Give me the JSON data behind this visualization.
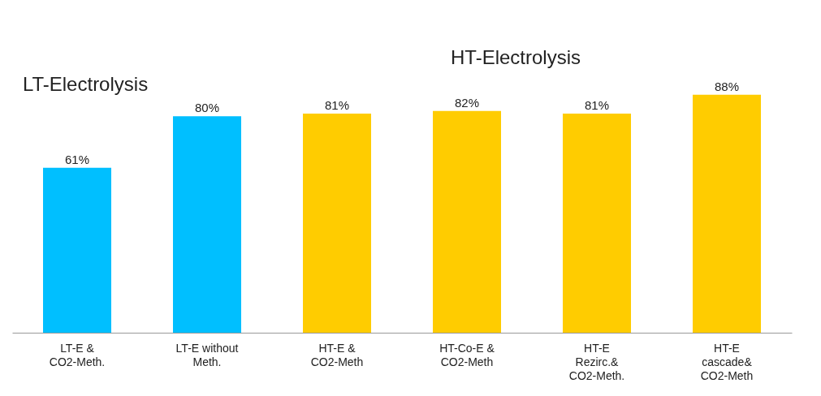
{
  "chart_data": {
    "type": "bar",
    "categories": [
      "LT-E &\nCO2-Meth.",
      "LT-E without\nMeth.",
      "HT-E &\nCO2-Meth",
      "HT-Co-E &\nCO2-Meth",
      "HT-E\nRezirc.&\nCO2-Meth.",
      "HT-E\ncascade&\nCO2-Meth"
    ],
    "values": [
      61,
      80,
      81,
      82,
      81,
      88
    ],
    "colors": [
      "#00bfff",
      "#00bfff",
      "#ffcc00",
      "#ffcc00",
      "#ffcc00",
      "#ffcc00"
    ],
    "value_labels": [
      "61%",
      "80%",
      "81%",
      "82%",
      "81%",
      "88%"
    ],
    "tick_labels": "x",
    "annotations": [
      "LT-Electrolysis",
      "HT-Electrolysis"
    ]
  }
}
